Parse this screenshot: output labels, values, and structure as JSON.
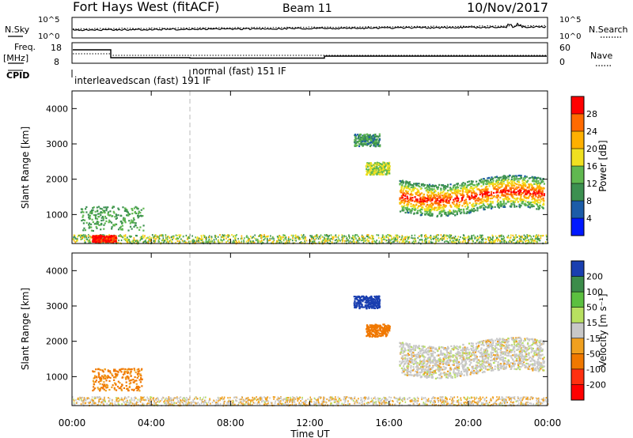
{
  "header": {
    "station": "Fort Hays West (fitACF)",
    "beam": "Beam 11",
    "date": "10/Nov/2017"
  },
  "strips": {
    "noise": {
      "left_label": "N.Sky",
      "right_label": "N.Search",
      "left_ticks": [
        "10^5",
        "10^0"
      ],
      "right_ticks": [
        "10^5",
        "10^0"
      ]
    },
    "freq": {
      "left_label_1": "Freq.",
      "left_label_2": "[MHz]",
      "right_label": "Nave",
      "left_ticks": [
        "18",
        "8"
      ],
      "right_ticks": [
        "60",
        "0"
      ]
    },
    "cpid": {
      "label": "CPID",
      "mode_1": "interleavedscan (fast) 191 IF",
      "mode_2": "normal (fast) 151 IF"
    }
  },
  "chart_data": [
    {
      "type": "heatmap",
      "name": "Power",
      "ylabel": "Slant Range [km]",
      "ylim": [
        180,
        4500
      ],
      "yticks": [
        1000,
        2000,
        3000,
        4000
      ],
      "xlim": [
        0,
        24
      ],
      "xticks": [
        "00:00",
        "04:00",
        "08:00",
        "12:00",
        "16:00",
        "20:00",
        "00:00"
      ],
      "colorbar": {
        "label": "Power [dB]",
        "ticks": [
          "28",
          "24",
          "20",
          "16",
          "12",
          "8",
          "4"
        ],
        "colors": [
          "#ff0000",
          "#ff6a00",
          "#ffb000",
          "#f0e020",
          "#60b850",
          "#3c9050",
          "#1c5ca8",
          "#0018ff"
        ]
      },
      "features": [
        {
          "region": "ground scatter band",
          "time": [
            0,
            24
          ],
          "range_km": [
            200,
            450
          ],
          "power_db": 12
        },
        {
          "region": "patch 1",
          "time": [
            1.0,
            2.2
          ],
          "range_km": [
            240,
            430
          ],
          "power_db": 28
        },
        {
          "region": "patch 2",
          "time": [
            0.4,
            3.6
          ],
          "range_km": [
            560,
            1250
          ],
          "power_db": 10
        },
        {
          "region": "echo 3",
          "time": [
            14.2,
            15.5
          ],
          "range_km": [
            2950,
            3300
          ],
          "power_db": 8
        },
        {
          "region": "echo 4",
          "time": [
            14.8,
            16.0
          ],
          "range_km": [
            2150,
            2500
          ],
          "power_db": 14
        },
        {
          "region": "main scatter",
          "time": [
            16.5,
            23.8
          ],
          "range_km": [
            1100,
            2000
          ],
          "power_db": 20
        }
      ]
    },
    {
      "type": "heatmap",
      "name": "Velocity",
      "ylabel": "Slant Range [km]",
      "ylim": [
        180,
        4500
      ],
      "yticks": [
        1000,
        2000,
        3000,
        4000
      ],
      "xlim": [
        0,
        24
      ],
      "xticks": [
        "00:00",
        "04:00",
        "08:00",
        "12:00",
        "16:00",
        "20:00",
        "00:00"
      ],
      "xlabel": "Time UT",
      "colorbar": {
        "label": "Velocity [m s⁻¹]",
        "ticks": [
          "200",
          "100",
          "50",
          "15",
          "-15",
          "-50",
          "-100",
          "-200"
        ],
        "colors": [
          "#1a3fb0",
          "#3c8c4a",
          "#5cc040",
          "#b8e060",
          "#c8c8c8",
          "#f0a020",
          "#f07800",
          "#ff3010",
          "#ff0000"
        ]
      },
      "features": [
        {
          "region": "ground scatter band",
          "time": [
            0,
            24
          ],
          "range_km": [
            200,
            450
          ],
          "velocity_ms": -30
        },
        {
          "region": "patch 2",
          "time": [
            1.0,
            3.5
          ],
          "range_km": [
            620,
            1250
          ],
          "velocity_ms": -60
        },
        {
          "region": "echo 3",
          "time": [
            14.2,
            15.5
          ],
          "range_km": [
            2950,
            3300
          ],
          "velocity_ms": 200
        },
        {
          "region": "echo 4",
          "time": [
            14.8,
            16.0
          ],
          "range_km": [
            2150,
            2500
          ],
          "velocity_ms": -80
        },
        {
          "region": "main scatter",
          "time": [
            16.5,
            23.8
          ],
          "range_km": [
            1100,
            2000
          ],
          "velocity_ms": 0
        }
      ]
    }
  ]
}
